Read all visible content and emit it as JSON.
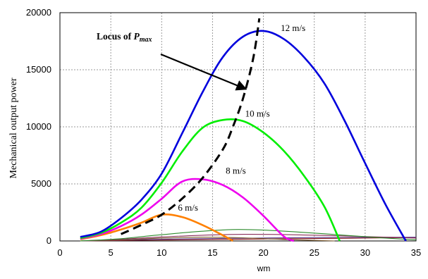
{
  "chart_data": {
    "type": "line",
    "title": "",
    "xlabel": "wm",
    "ylabel": "Mechanical output power",
    "xlim": [
      0,
      35
    ],
    "ylim": [
      0,
      20000
    ],
    "xticks": [
      0,
      5,
      10,
      15,
      20,
      25,
      30,
      35
    ],
    "yticks": [
      0,
      5000,
      10000,
      15000,
      20000
    ],
    "xtick_labels": [
      "0",
      "5",
      "10",
      "15",
      "20",
      "25",
      "30",
      "35"
    ],
    "ytick_labels": [
      "0",
      "5000",
      "10000",
      "15000",
      "20000"
    ],
    "grid": true,
    "series": [
      {
        "name": "12 m/s",
        "color": "#0000dd",
        "x": [
          2,
          4,
          6,
          8,
          10,
          12,
          14,
          16,
          18,
          20,
          22,
          24,
          26,
          28,
          30,
          32,
          34
        ],
        "y": [
          350,
          800,
          2000,
          3600,
          5900,
          9400,
          13000,
          16100,
          17900,
          18400,
          17700,
          16100,
          13800,
          10500,
          6800,
          3200,
          0
        ]
      },
      {
        "name": "10 m/s",
        "color": "#00ee00",
        "x": [
          2,
          4,
          6,
          8,
          10,
          12,
          14,
          16,
          18,
          20,
          22,
          24,
          26,
          27.5
        ],
        "y": [
          250,
          700,
          1600,
          2900,
          5100,
          7800,
          9900,
          10600,
          10500,
          9500,
          7900,
          5700,
          3000,
          0
        ]
      },
      {
        "name": "8 m/s",
        "color": "#ee00ee",
        "x": [
          2,
          4,
          6,
          8,
          10,
          12,
          14,
          16,
          18,
          20,
          22,
          23
        ],
        "y": [
          200,
          600,
          1300,
          2300,
          3700,
          5200,
          5400,
          4900,
          3800,
          2200,
          400,
          0
        ]
      },
      {
        "name": "6 m/s",
        "color": "#ff8000",
        "x": [
          2,
          4,
          6,
          8,
          10,
          12,
          14,
          16,
          17
        ],
        "y": [
          150,
          500,
          1000,
          1600,
          2300,
          2100,
          1400,
          500,
          0
        ]
      },
      {
        "name": "",
        "color": "#2e8b2e",
        "x": [
          2,
          6,
          10,
          14,
          17,
          20,
          24,
          28,
          32,
          35
        ],
        "y": [
          0,
          200,
          550,
          850,
          1000,
          950,
          750,
          500,
          250,
          100
        ]
      },
      {
        "name": "",
        "color": "#8b2e5a",
        "x": [
          2,
          6,
          10,
          14,
          18,
          22,
          26,
          30,
          35
        ],
        "y": [
          0,
          150,
          350,
          500,
          580,
          560,
          480,
          380,
          250
        ]
      },
      {
        "name": "",
        "color": "#7a5a2e",
        "x": [
          2,
          6,
          10,
          14,
          18,
          22,
          27
        ],
        "y": [
          0,
          100,
          250,
          330,
          280,
          130,
          0
        ]
      },
      {
        "name": "",
        "color": "#5a3a8b",
        "x": [
          2,
          8,
          14,
          20,
          26,
          32,
          35
        ],
        "y": [
          0,
          120,
          200,
          260,
          300,
          320,
          330
        ]
      },
      {
        "name": "",
        "color": "#8b1a1a",
        "x": [
          2,
          8,
          14,
          20,
          26,
          32,
          35
        ],
        "y": [
          0,
          60,
          120,
          170,
          220,
          270,
          300
        ]
      }
    ],
    "locus": {
      "label_main": "Locus of ",
      "label_var": "P",
      "label_sub": "max",
      "x": [
        6,
        8,
        10,
        12,
        14,
        16,
        17,
        18,
        19,
        19.6
      ],
      "y": [
        600,
        1400,
        2300,
        3700,
        5500,
        8000,
        10000,
        12500,
        16000,
        19500
      ]
    },
    "annotations": [
      {
        "text": "12 m/s",
        "x": 21.7,
        "y": 18400
      },
      {
        "text": "10 m/s",
        "x": 18.2,
        "y": 10900
      },
      {
        "text": "8 m/s",
        "x": 16.3,
        "y": 5900
      },
      {
        "text": "6 m/s",
        "x": 11.6,
        "y": 2650
      }
    ]
  }
}
